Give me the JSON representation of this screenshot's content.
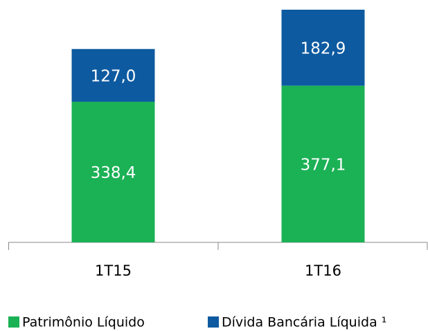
{
  "chart_data": {
    "type": "stacked_bar",
    "categories": [
      "1T15",
      "1T16"
    ],
    "series": [
      {
        "name": "Patrimônio Líquido",
        "color": "#1bb155",
        "values": [
          338.4,
          377.1
        ],
        "value_labels": [
          "338,4",
          "377,1"
        ]
      },
      {
        "name": "Dívida Bancária Líquida ¹",
        "color": "#0d5aa0",
        "values": [
          127.0,
          182.9
        ],
        "value_labels": [
          "127,0",
          "182,9"
        ]
      }
    ],
    "ylim": [
      0,
      580
    ]
  }
}
